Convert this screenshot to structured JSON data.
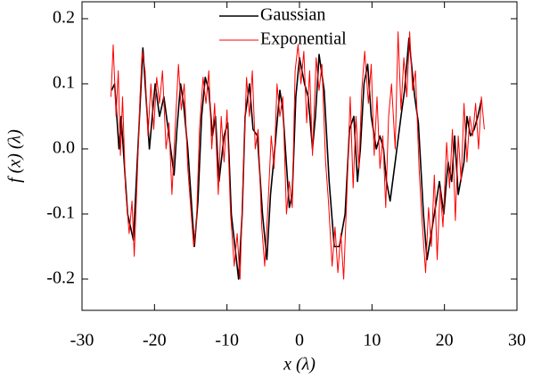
{
  "chart_data": {
    "type": "line",
    "x_label": "x (λ)",
    "y_label": "f (x) (λ)",
    "xlim": [
      -30,
      30
    ],
    "xticks": [
      -30,
      -20,
      -10,
      0,
      10,
      20,
      30
    ],
    "ylim": [
      -0.248,
      0.226
    ],
    "yticks": [
      -0.2,
      -0.1,
      {
        "value": 0,
        "label": "0.0"
      },
      0.1,
      0.2
    ],
    "legend": "top",
    "series": [
      {
        "name": "Gaussian",
        "color": "#000000",
        "x": [
          -25.9,
          -25.5,
          -24.9,
          -24.6,
          -23.7,
          -22.9,
          -21.6,
          -20.7,
          -19.9,
          -19.3,
          -18.7,
          -18,
          -17.3,
          -16.9,
          -16.4,
          -16,
          -15.4,
          -14.5,
          -14,
          -13.5,
          -13,
          -12.5,
          -12,
          -11.6,
          -11.1,
          -10.4,
          -9.9,
          -9.4,
          -8.4,
          -7.9,
          -7.5,
          -6.9,
          -6.4,
          -5.8,
          -5.1,
          -4.5,
          -4,
          -3.4,
          -2.7,
          -2.3,
          -1.4,
          -1,
          -0.5,
          0,
          0.7,
          1.2,
          1.8,
          2.2,
          2.7,
          3.4,
          4.1,
          4.8,
          5.5,
          6.3,
          6.9,
          7.5,
          8,
          8.4,
          8.9,
          9.4,
          9.9,
          10.6,
          11.1,
          11.6,
          12,
          12.5,
          13.2,
          14,
          14.5,
          15.1,
          15.9,
          16.4,
          17.1,
          17.6,
          18.6,
          19.3,
          19.9,
          20.5,
          21,
          21.4,
          21.9,
          22.7,
          23.1,
          23.6,
          24.1,
          24.6,
          25.1
        ],
        "values": [
          0.09,
          0.1,
          0.0,
          0.05,
          -0.1,
          -0.14,
          0.155,
          0.0,
          0.1,
          0.05,
          0.08,
          0.02,
          -0.04,
          0.03,
          0.1,
          0.07,
          0.0,
          -0.15,
          -0.08,
          0.05,
          0.11,
          0.09,
          0.02,
          0.05,
          -0.05,
          0.02,
          0.04,
          -0.1,
          -0.2,
          -0.1,
          0.05,
          0.1,
          0.03,
          0.02,
          -0.1,
          -0.17,
          -0.07,
          0.0,
          0.09,
          0.06,
          -0.09,
          -0.07,
          0.08,
          0.14,
          0.1,
          0.08,
          0.0,
          0.05,
          0.145,
          0.09,
          -0.05,
          -0.15,
          -0.15,
          -0.1,
          0.03,
          0.05,
          -0.05,
          0.0,
          0.1,
          0.13,
          0.05,
          0.0,
          0.02,
          0.0,
          -0.05,
          -0.08,
          -0.02,
          0.05,
          0.09,
          0.17,
          0.08,
          0.04,
          -0.1,
          -0.17,
          -0.1,
          -0.05,
          -0.1,
          -0.02,
          -0.05,
          0.02,
          -0.07,
          -0.02,
          0.05,
          0.02,
          0.03,
          0.05,
          0.075
        ]
      },
      {
        "name": "Exponential",
        "color": "#ff0000",
        "x": [
          -26,
          -25.7,
          -25.3,
          -25,
          -24.7,
          -24.4,
          -24,
          -23.5,
          -23.1,
          -22.8,
          -22.4,
          -22,
          -21.7,
          -21.3,
          -20.9,
          -20.5,
          -20.1,
          -19.7,
          -19.3,
          -18.9,
          -18.4,
          -18,
          -17.6,
          -17.2,
          -16.7,
          -16.3,
          -15.9,
          -15.4,
          -15,
          -14.6,
          -14.2,
          -13.8,
          -13.3,
          -12.9,
          -12.5,
          -12.1,
          -11.7,
          -11.2,
          -10.8,
          -10.4,
          -10,
          -9.5,
          -9,
          -8.6,
          -8.2,
          -7.8,
          -7.3,
          -6.9,
          -6.5,
          -6.1,
          -5.7,
          -5.2,
          -4.8,
          -4.4,
          -3.9,
          -3.5,
          -3.1,
          -2.7,
          -2.3,
          -1.8,
          -1.4,
          -1,
          -0.6,
          -0.2,
          0.2,
          0.6,
          1,
          1.4,
          1.8,
          2.3,
          2.7,
          3.1,
          3.6,
          4,
          4.5,
          4.9,
          5.3,
          5.7,
          6.1,
          6.6,
          7,
          7.4,
          7.8,
          8.2,
          8.6,
          9,
          9.5,
          9.9,
          10.3,
          10.7,
          11.1,
          11.5,
          11.9,
          12.3,
          12.7,
          13.2,
          13.6,
          14,
          14.4,
          14.8,
          15.2,
          15.6,
          16,
          16.5,
          16.9,
          17.4,
          17.8,
          18.2,
          18.6,
          19,
          19.4,
          19.8,
          20.3,
          20.7,
          21.1,
          21.5,
          21.9,
          22.3,
          22.7,
          23.1,
          23.5,
          23.9,
          24.3,
          24.7,
          25.1,
          25.5
        ],
        "values": [
          0.08,
          0.16,
          0.05,
          0.12,
          -0.01,
          0.08,
          -0.06,
          -0.13,
          -0.08,
          -0.165,
          -0.05,
          0.08,
          0.15,
          0.12,
          0.02,
          0.1,
          0.03,
          0.11,
          0.07,
          0.12,
          0.0,
          0.04,
          -0.07,
          0.02,
          0.13,
          0.06,
          0.1,
          -0.03,
          -0.09,
          -0.15,
          -0.11,
          0.03,
          0.11,
          0.07,
          0.12,
          0.0,
          0.07,
          -0.07,
          0.05,
          -0.02,
          0.06,
          -0.1,
          -0.18,
          -0.13,
          -0.2,
          -0.05,
          0.11,
          0.05,
          0.12,
          0.0,
          0.03,
          -0.12,
          -0.18,
          -0.1,
          0.02,
          -0.03,
          0.1,
          0.05,
          0.08,
          -0.1,
          -0.05,
          -0.09,
          0.12,
          0.16,
          0.1,
          0.15,
          0.04,
          0.12,
          -0.01,
          0.14,
          0.09,
          0.13,
          -0.02,
          -0.08,
          -0.18,
          -0.12,
          -0.19,
          -0.13,
          -0.2,
          -0.05,
          0.08,
          -0.06,
          0.05,
          -0.03,
          0.09,
          0.15,
          0.07,
          0.13,
          -0.01,
          0.08,
          -0.03,
          0.02,
          -0.09,
          0.05,
          0.1,
          0.0,
          0.18,
          0.06,
          0.14,
          0.08,
          0.18,
          0.09,
          0.12,
          -0.03,
          -0.11,
          -0.19,
          -0.09,
          -0.15,
          -0.04,
          -0.17,
          -0.06,
          -0.12,
          0.01,
          -0.06,
          0.03,
          -0.11,
          0.02,
          -0.05,
          0.07,
          -0.02,
          0.05,
          0.02,
          0.07,
          0.0,
          0.08,
          0.03
        ]
      }
    ]
  }
}
